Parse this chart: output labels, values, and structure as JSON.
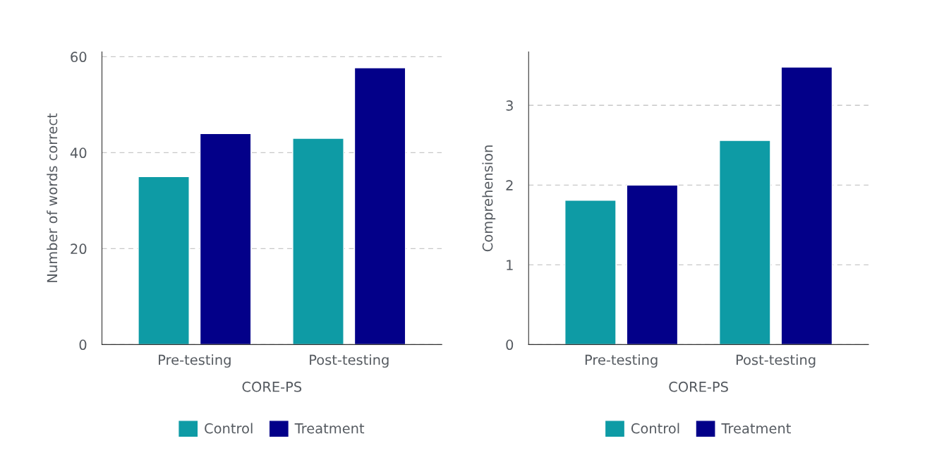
{
  "chart_data": [
    {
      "type": "bar",
      "xlabel": "CORE-PS",
      "ylabel": "Number of words correct",
      "categories": [
        "Pre-testing",
        "Post-testing"
      ],
      "series": [
        {
          "name": "Control",
          "color": "#0e9ba5",
          "values": [
            35,
            43
          ]
        },
        {
          "name": "Treatment",
          "color": "#030089",
          "values": [
            44,
            57.7
          ]
        }
      ],
      "ylim": [
        0,
        61
      ],
      "yticks": [
        0,
        20,
        40,
        60
      ],
      "grid": "y",
      "legend": "bottom"
    },
    {
      "type": "bar",
      "xlabel": "CORE-PS",
      "ylabel": "Comprehension",
      "categories": [
        "Pre-testing",
        "Post-testing"
      ],
      "series": [
        {
          "name": "Control",
          "color": "#0e9ba5",
          "values": [
            1.81,
            2.56
          ]
        },
        {
          "name": "Treatment",
          "color": "#030089",
          "values": [
            2.0,
            3.48
          ]
        }
      ],
      "ylim": [
        0,
        3.67
      ],
      "yticks": [
        0,
        1,
        2,
        3
      ],
      "grid": "y",
      "legend": "bottom"
    }
  ]
}
